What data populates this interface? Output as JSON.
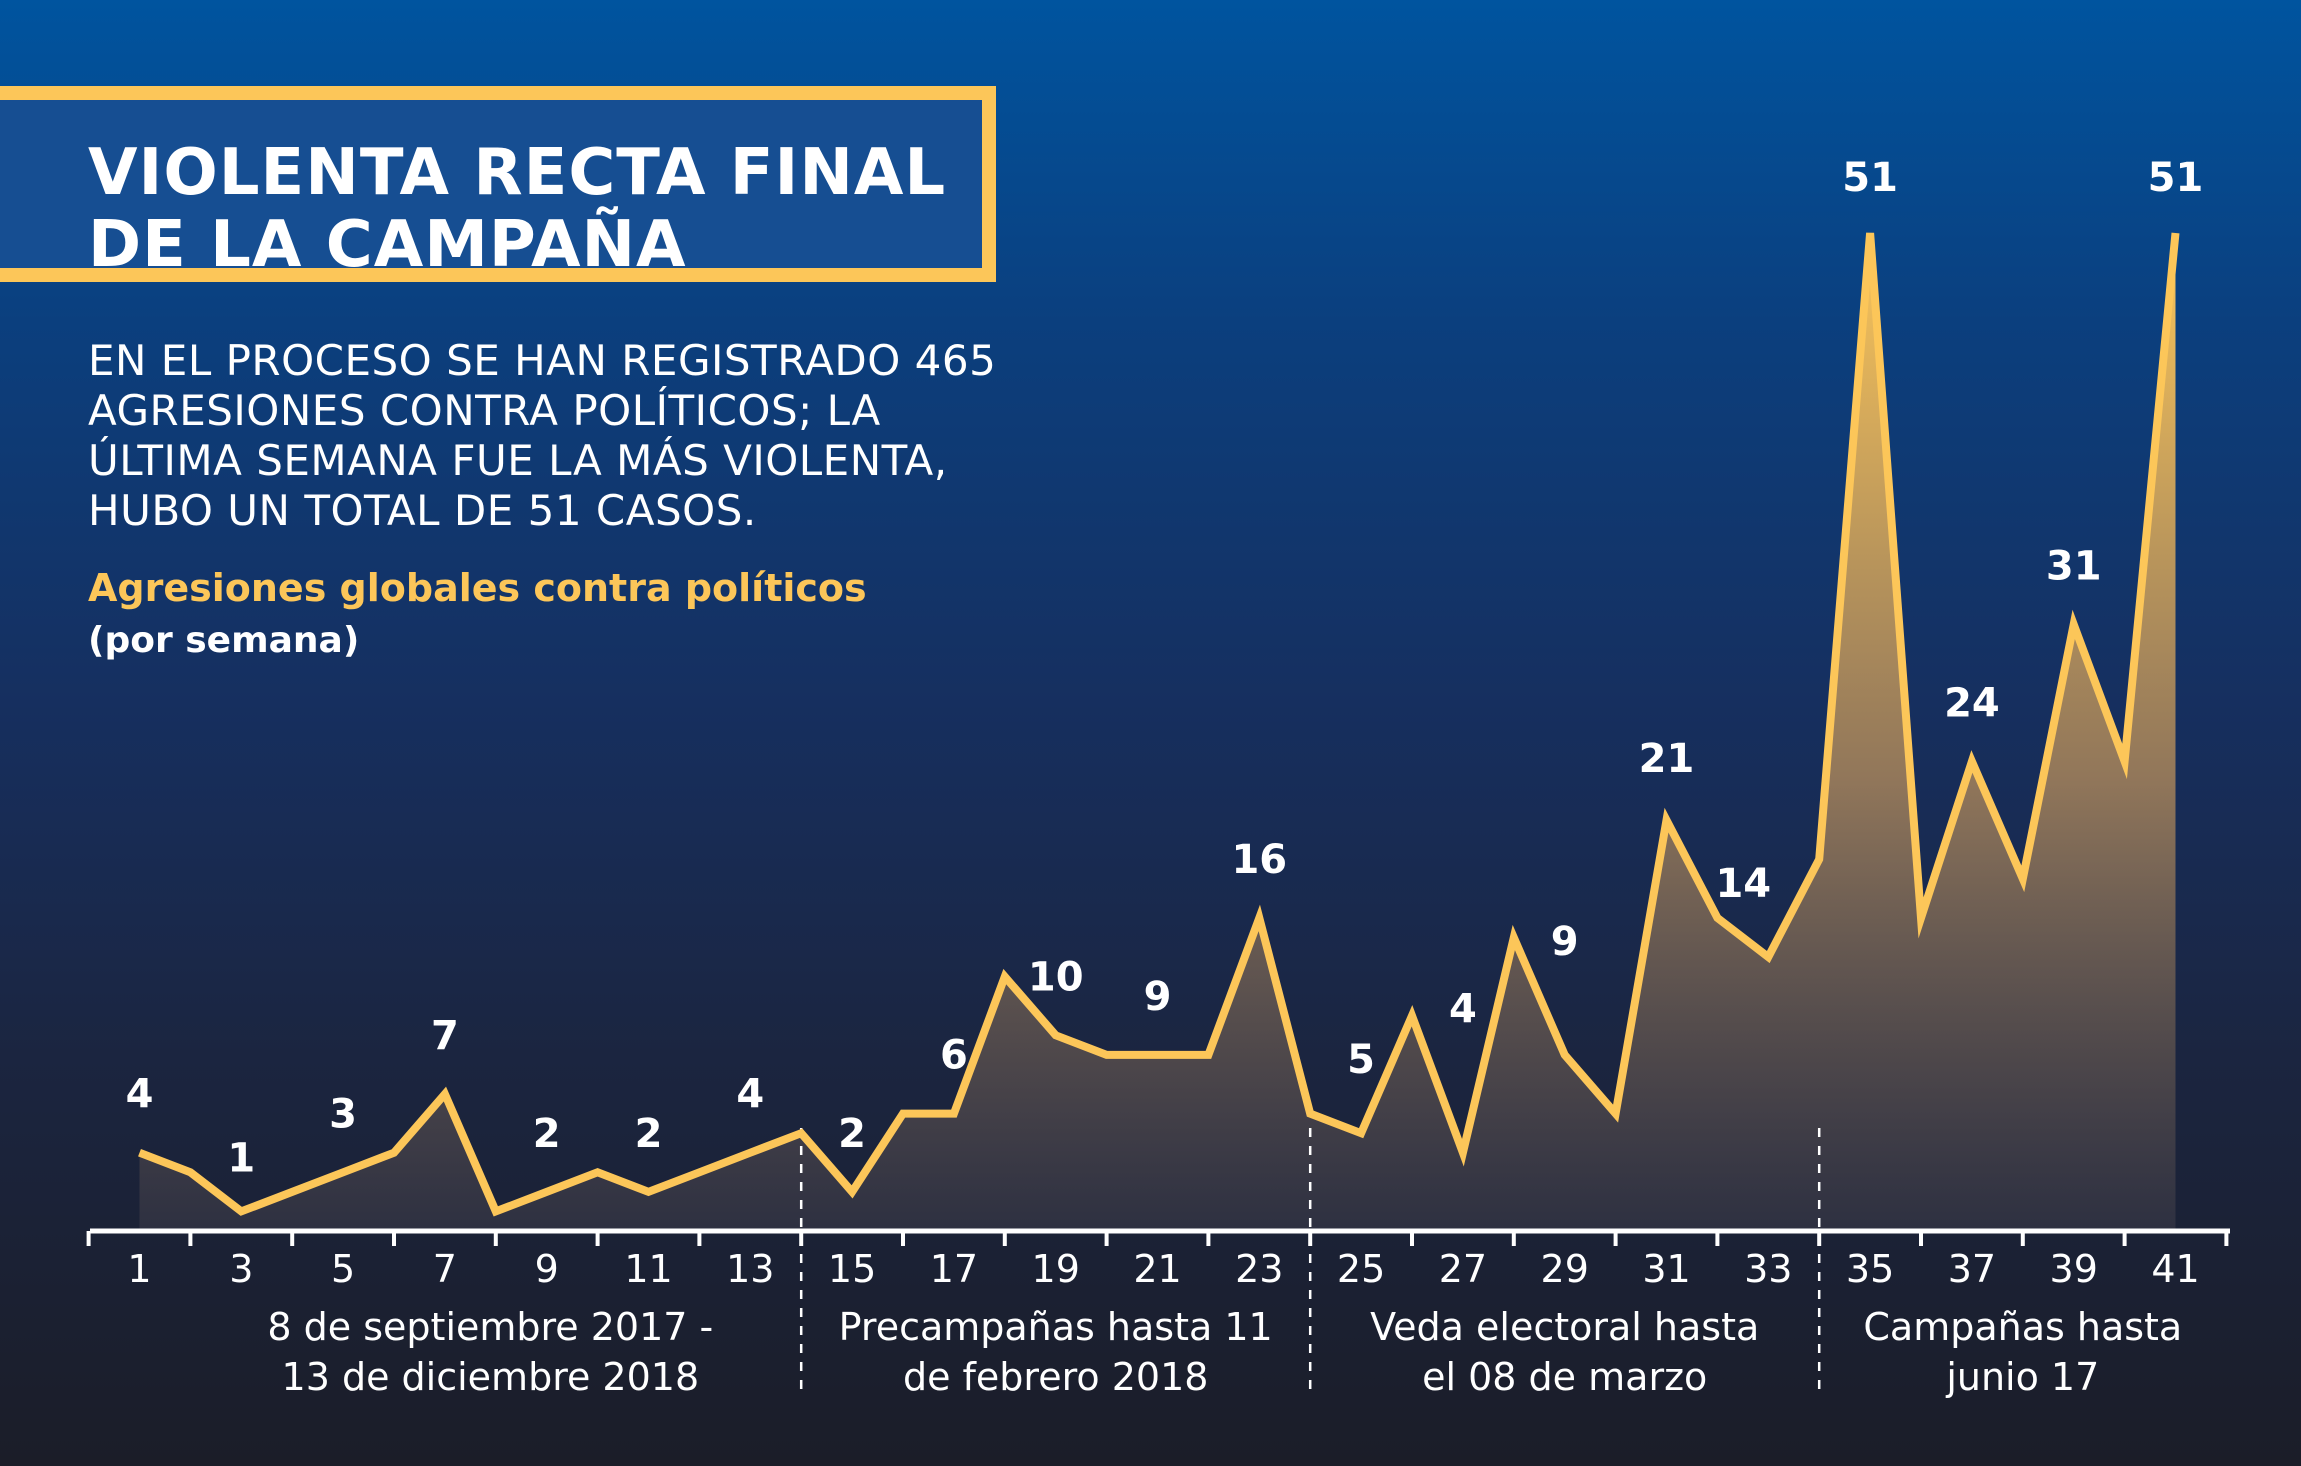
{
  "header": {
    "title_lines": [
      "VIOLENTA RECTA FINAL",
      "DE LA CAMPAÑA"
    ],
    "subtitle_lines": [
      "EN EL PROCESO SE HAN REGISTRADO 465",
      "AGRESIONES CONTRA POLÍTICOS; LA",
      "ÚLTIMA SEMANA FUE LA MÁS VIOLENTA,",
      "HUBO UN TOTAL DE 51 CASOS."
    ],
    "series_label": "Agresiones globales contra políticos",
    "series_unit": "(por semana)"
  },
  "colors": {
    "line": "#fcc659",
    "text": "#ffffff",
    "background_top": "#00549f",
    "background_bottom": "#1b1d28",
    "title_box_fill": "#164e92"
  },
  "chart_data": {
    "type": "line",
    "title": "VIOLENTA RECTA FINAL DE LA CAMPAÑA",
    "xlabel": "",
    "ylabel": "Agresiones globales contra políticos (por semana)",
    "x": [
      1,
      2,
      3,
      4,
      5,
      6,
      7,
      8,
      9,
      10,
      11,
      12,
      13,
      14,
      15,
      16,
      17,
      18,
      19,
      20,
      21,
      22,
      23,
      24,
      25,
      26,
      27,
      28,
      29,
      30,
      31,
      32,
      33,
      34,
      35,
      36,
      37,
      38,
      39,
      40,
      41
    ],
    "values": [
      4,
      3,
      1,
      2,
      3,
      4,
      7,
      1,
      2,
      3,
      2,
      3,
      4,
      5,
      2,
      6,
      6,
      13,
      10,
      9,
      9,
      9,
      16,
      6,
      5,
      11,
      4,
      15,
      9,
      6,
      21,
      16,
      14,
      19,
      51,
      16,
      24,
      18,
      31,
      24,
      51
    ],
    "x_tick_labels": [
      "1",
      "3",
      "5",
      "7",
      "9",
      "11",
      "13",
      "15",
      "17",
      "19",
      "21",
      "23",
      "25",
      "27",
      "29",
      "31",
      "33",
      "35",
      "37",
      "39",
      "41"
    ],
    "data_labels": [
      {
        "week": 1,
        "text": "4"
      },
      {
        "week": 3,
        "text": "1"
      },
      {
        "week": 5,
        "text": "3"
      },
      {
        "week": 7,
        "text": "7"
      },
      {
        "week": 9,
        "text": "2"
      },
      {
        "week": 11,
        "text": "2"
      },
      {
        "week": 13,
        "text": "4"
      },
      {
        "week": 15,
        "text": "2"
      },
      {
        "week": 17,
        "text": "6"
      },
      {
        "week": 19,
        "text": "10"
      },
      {
        "week": 21,
        "text": "9"
      },
      {
        "week": 23,
        "text": "16"
      },
      {
        "week": 25,
        "text": "5"
      },
      {
        "week": 27,
        "text": "4"
      },
      {
        "week": 29,
        "text": "9"
      },
      {
        "week": 31,
        "text": "21"
      },
      {
        "week": 33,
        "text": "14"
      },
      {
        "week": 35,
        "text": "51"
      },
      {
        "week": 37,
        "text": "24"
      },
      {
        "week": 39,
        "text": "31"
      },
      {
        "week": 41,
        "text": "51"
      }
    ],
    "ylim": [
      0,
      51
    ],
    "period_dividers_after_week": [
      14.0,
      24.0,
      34.0
    ],
    "periods": [
      {
        "lines": [
          "8 de septiembre 2017 -",
          "13 de diciembre 2018"
        ],
        "from_week": 1,
        "to_week": 14
      },
      {
        "lines": [
          "Precampañas hasta 11",
          "de febrero 2018"
        ],
        "from_week": 14,
        "to_week": 24
      },
      {
        "lines": [
          "Veda electoral hasta",
          "el 08 de marzo"
        ],
        "from_week": 24,
        "to_week": 34
      },
      {
        "lines": [
          "Campañas hasta",
          "junio 17"
        ],
        "from_week": 34,
        "to_week": 42
      }
    ],
    "grid": false,
    "legend": "none"
  }
}
